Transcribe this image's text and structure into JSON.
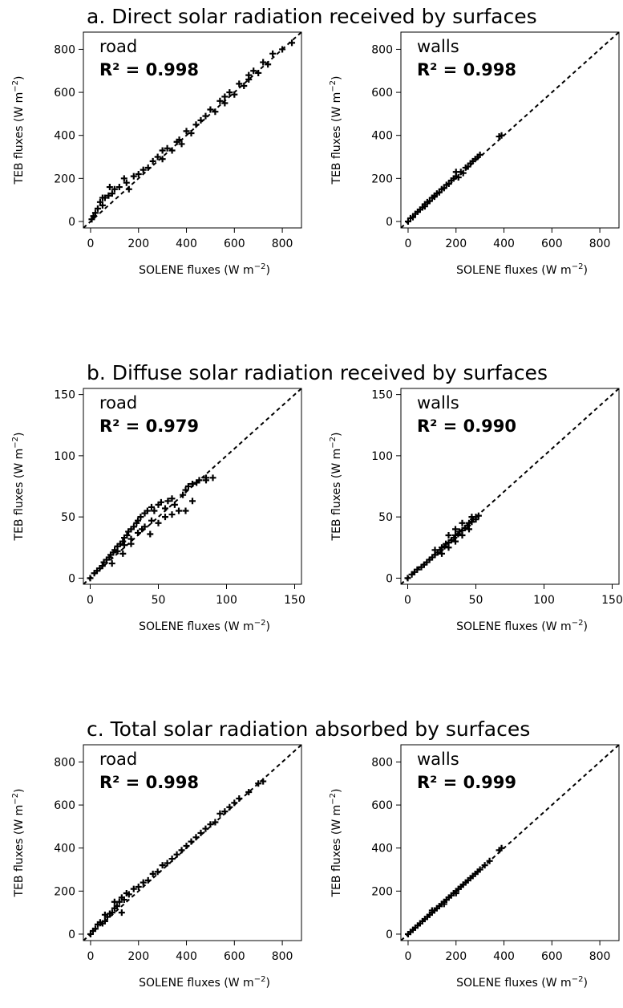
{
  "figure": {
    "sections": [
      {
        "title": "a. Direct solar radiation received by surfaces"
      },
      {
        "title": "b. Diffuse solar radiation received by surfaces"
      },
      {
        "title": "c. Total solar radiation absorbed by surfaces"
      }
    ],
    "xlabel": "SOLENE fluxes (W m",
    "ylabel": "TEB fluxes (W m",
    "unit_exponent": "−2",
    "closing_paren": ")",
    "r2_prefix": "R² = "
  },
  "chart_data": [
    {
      "type": "scatter",
      "section": 0,
      "panel": "road",
      "r2": "0.998",
      "xlim": [
        -30,
        880
      ],
      "ylim": [
        -30,
        880
      ],
      "xticks": [
        0,
        200,
        400,
        600,
        800
      ],
      "yticks": [
        0,
        200,
        400,
        600,
        800
      ],
      "reference_line": "1:1 dashed",
      "marker": "+",
      "points": [
        [
          5,
          10
        ],
        [
          12,
          25
        ],
        [
          20,
          40
        ],
        [
          30,
          60
        ],
        [
          40,
          90
        ],
        [
          50,
          75
        ],
        [
          60,
          110
        ],
        [
          75,
          120
        ],
        [
          90,
          130
        ],
        [
          100,
          150
        ],
        [
          120,
          160
        ],
        [
          140,
          200
        ],
        [
          150,
          180
        ],
        [
          160,
          150
        ],
        [
          180,
          210
        ],
        [
          200,
          220
        ],
        [
          220,
          240
        ],
        [
          240,
          250
        ],
        [
          260,
          280
        ],
        [
          280,
          300
        ],
        [
          300,
          290
        ],
        [
          320,
          340
        ],
        [
          340,
          330
        ],
        [
          360,
          370
        ],
        [
          380,
          360
        ],
        [
          400,
          420
        ],
        [
          420,
          410
        ],
        [
          440,
          450
        ],
        [
          460,
          470
        ],
        [
          480,
          490
        ],
        [
          500,
          520
        ],
        [
          520,
          510
        ],
        [
          540,
          560
        ],
        [
          560,
          550
        ],
        [
          580,
          600
        ],
        [
          600,
          590
        ],
        [
          620,
          640
        ],
        [
          640,
          630
        ],
        [
          660,
          680
        ],
        [
          680,
          700
        ],
        [
          700,
          690
        ],
        [
          720,
          740
        ],
        [
          740,
          730
        ],
        [
          760,
          780
        ],
        [
          800,
          800
        ],
        [
          840,
          830
        ],
        [
          50,
          110
        ],
        [
          80,
          160
        ],
        [
          300,
          330
        ],
        [
          370,
          380
        ],
        [
          560,
          580
        ],
        [
          660,
          660
        ]
      ]
    },
    {
      "type": "scatter",
      "section": 0,
      "panel": "walls",
      "r2": "0.998",
      "xlim": [
        -30,
        880
      ],
      "ylim": [
        -30,
        880
      ],
      "xticks": [
        0,
        200,
        400,
        600,
        800
      ],
      "yticks": [
        0,
        200,
        400,
        600,
        800
      ],
      "reference_line": "1:1 dashed",
      "marker": "+",
      "points": [
        [
          0,
          0
        ],
        [
          10,
          15
        ],
        [
          20,
          20
        ],
        [
          30,
          35
        ],
        [
          40,
          45
        ],
        [
          50,
          55
        ],
        [
          60,
          65
        ],
        [
          70,
          70
        ],
        [
          80,
          90
        ],
        [
          90,
          95
        ],
        [
          100,
          110
        ],
        [
          110,
          115
        ],
        [
          120,
          130
        ],
        [
          130,
          135
        ],
        [
          140,
          150
        ],
        [
          150,
          155
        ],
        [
          160,
          170
        ],
        [
          170,
          175
        ],
        [
          180,
          190
        ],
        [
          190,
          200
        ],
        [
          200,
          210
        ],
        [
          210,
          205
        ],
        [
          220,
          230
        ],
        [
          230,
          225
        ],
        [
          240,
          250
        ],
        [
          250,
          255
        ],
        [
          260,
          270
        ],
        [
          270,
          280
        ],
        [
          280,
          290
        ],
        [
          290,
          300
        ],
        [
          300,
          310
        ],
        [
          390,
          400
        ],
        [
          380,
          395
        ],
        [
          70,
          80
        ],
        [
          110,
          120
        ],
        [
          200,
          230
        ]
      ]
    },
    {
      "type": "scatter",
      "section": 1,
      "panel": "road",
      "r2": "0.979",
      "xlim": [
        -5,
        155
      ],
      "ylim": [
        -5,
        155
      ],
      "xticks": [
        0,
        50,
        100,
        150
      ],
      "yticks": [
        0,
        50,
        100,
        150
      ],
      "reference_line": "1:1 dashed",
      "marker": "+",
      "points": [
        [
          0,
          0
        ],
        [
          3,
          4
        ],
        [
          5,
          6
        ],
        [
          7,
          8
        ],
        [
          9,
          10
        ],
        [
          10,
          13
        ],
        [
          12,
          15
        ],
        [
          14,
          17
        ],
        [
          15,
          19
        ],
        [
          17,
          21
        ],
        [
          18,
          23
        ],
        [
          20,
          26
        ],
        [
          22,
          28
        ],
        [
          24,
          30
        ],
        [
          25,
          33
        ],
        [
          27,
          35
        ],
        [
          28,
          38
        ],
        [
          30,
          40
        ],
        [
          32,
          42
        ],
        [
          34,
          45
        ],
        [
          35,
          47
        ],
        [
          37,
          50
        ],
        [
          40,
          53
        ],
        [
          42,
          55
        ],
        [
          45,
          58
        ],
        [
          47,
          55
        ],
        [
          50,
          60
        ],
        [
          52,
          62
        ],
        [
          55,
          57
        ],
        [
          57,
          63
        ],
        [
          60,
          65
        ],
        [
          62,
          60
        ],
        [
          65,
          55
        ],
        [
          68,
          68
        ],
        [
          70,
          72
        ],
        [
          72,
          75
        ],
        [
          75,
          77
        ],
        [
          78,
          78
        ],
        [
          80,
          80
        ],
        [
          85,
          82
        ],
        [
          90,
          82
        ],
        [
          20,
          22
        ],
        [
          25,
          27
        ],
        [
          30,
          32
        ],
        [
          35,
          37
        ],
        [
          40,
          42
        ],
        [
          45,
          47
        ],
        [
          50,
          45
        ],
        [
          55,
          50
        ],
        [
          60,
          52
        ],
        [
          70,
          55
        ],
        [
          75,
          63
        ],
        [
          85,
          80
        ],
        [
          30,
          28
        ],
        [
          38,
          40
        ],
        [
          44,
          36
        ],
        [
          16,
          12
        ],
        [
          24,
          20
        ]
      ]
    },
    {
      "type": "scatter",
      "section": 1,
      "panel": "walls",
      "r2": "0.990",
      "xlim": [
        -5,
        155
      ],
      "ylim": [
        -5,
        155
      ],
      "xticks": [
        0,
        50,
        100,
        150
      ],
      "yticks": [
        0,
        50,
        100,
        150
      ],
      "reference_line": "1:1 dashed",
      "marker": "+",
      "points": [
        [
          0,
          0
        ],
        [
          3,
          3
        ],
        [
          5,
          5
        ],
        [
          7,
          7
        ],
        [
          10,
          9
        ],
        [
          12,
          11
        ],
        [
          14,
          13
        ],
        [
          16,
          15
        ],
        [
          18,
          17
        ],
        [
          20,
          19
        ],
        [
          22,
          21
        ],
        [
          24,
          23
        ],
        [
          25,
          25
        ],
        [
          27,
          26
        ],
        [
          28,
          28
        ],
        [
          30,
          29
        ],
        [
          32,
          31
        ],
        [
          34,
          33
        ],
        [
          35,
          35
        ],
        [
          37,
          36
        ],
        [
          38,
          38
        ],
        [
          40,
          39
        ],
        [
          42,
          41
        ],
        [
          44,
          43
        ],
        [
          45,
          45
        ],
        [
          47,
          46
        ],
        [
          48,
          48
        ],
        [
          50,
          50
        ],
        [
          52,
          51
        ],
        [
          25,
          20
        ],
        [
          30,
          25
        ],
        [
          35,
          30
        ],
        [
          40,
          35
        ],
        [
          45,
          40
        ],
        [
          30,
          35
        ],
        [
          35,
          40
        ],
        [
          20,
          23
        ],
        [
          40,
          45
        ],
        [
          50,
          48
        ],
        [
          47,
          50
        ]
      ]
    },
    {
      "type": "scatter",
      "section": 2,
      "panel": "road",
      "r2": "0.998",
      "xlim": [
        -30,
        880
      ],
      "ylim": [
        -30,
        880
      ],
      "xticks": [
        0,
        200,
        400,
        600,
        800
      ],
      "yticks": [
        0,
        200,
        400,
        600,
        800
      ],
      "reference_line": "1:1 dashed",
      "marker": "+",
      "points": [
        [
          0,
          0
        ],
        [
          10,
          15
        ],
        [
          20,
          25
        ],
        [
          30,
          45
        ],
        [
          40,
          55
        ],
        [
          50,
          50
        ],
        [
          60,
          60
        ],
        [
          70,
          80
        ],
        [
          80,
          95
        ],
        [
          90,
          100
        ],
        [
          100,
          120
        ],
        [
          110,
          130
        ],
        [
          120,
          150
        ],
        [
          130,
          170
        ],
        [
          140,
          160
        ],
        [
          150,
          190
        ],
        [
          160,
          185
        ],
        [
          180,
          210
        ],
        [
          200,
          220
        ],
        [
          220,
          240
        ],
        [
          240,
          250
        ],
        [
          260,
          280
        ],
        [
          280,
          290
        ],
        [
          300,
          320
        ],
        [
          320,
          330
        ],
        [
          340,
          350
        ],
        [
          360,
          370
        ],
        [
          380,
          390
        ],
        [
          400,
          410
        ],
        [
          420,
          430
        ],
        [
          440,
          450
        ],
        [
          460,
          470
        ],
        [
          480,
          490
        ],
        [
          500,
          510
        ],
        [
          520,
          520
        ],
        [
          540,
          560
        ],
        [
          560,
          570
        ],
        [
          580,
          590
        ],
        [
          600,
          610
        ],
        [
          620,
          630
        ],
        [
          660,
          660
        ],
        [
          700,
          700
        ],
        [
          720,
          710
        ],
        [
          60,
          90
        ],
        [
          100,
          150
        ],
        [
          130,
          100
        ]
      ]
    },
    {
      "type": "scatter",
      "section": 2,
      "panel": "walls",
      "r2": "0.999",
      "xlim": [
        -30,
        880
      ],
      "ylim": [
        -30,
        880
      ],
      "xticks": [
        0,
        200,
        400,
        600,
        800
      ],
      "yticks": [
        0,
        200,
        400,
        600,
        800
      ],
      "reference_line": "1:1 dashed",
      "marker": "+",
      "points": [
        [
          0,
          0
        ],
        [
          10,
          10
        ],
        [
          20,
          20
        ],
        [
          30,
          30
        ],
        [
          40,
          40
        ],
        [
          50,
          50
        ],
        [
          60,
          60
        ],
        [
          70,
          70
        ],
        [
          80,
          80
        ],
        [
          90,
          90
        ],
        [
          100,
          100
        ],
        [
          110,
          110
        ],
        [
          120,
          120
        ],
        [
          130,
          130
        ],
        [
          140,
          140
        ],
        [
          150,
          150
        ],
        [
          160,
          160
        ],
        [
          170,
          170
        ],
        [
          180,
          180
        ],
        [
          190,
          190
        ],
        [
          200,
          200
        ],
        [
          210,
          210
        ],
        [
          220,
          220
        ],
        [
          230,
          230
        ],
        [
          240,
          240
        ],
        [
          250,
          250
        ],
        [
          260,
          260
        ],
        [
          270,
          270
        ],
        [
          280,
          280
        ],
        [
          290,
          290
        ],
        [
          300,
          300
        ],
        [
          320,
          320
        ],
        [
          340,
          340
        ],
        [
          380,
          390
        ],
        [
          390,
          400
        ],
        [
          100,
          110
        ],
        [
          150,
          140
        ],
        [
          200,
          190
        ]
      ]
    }
  ]
}
